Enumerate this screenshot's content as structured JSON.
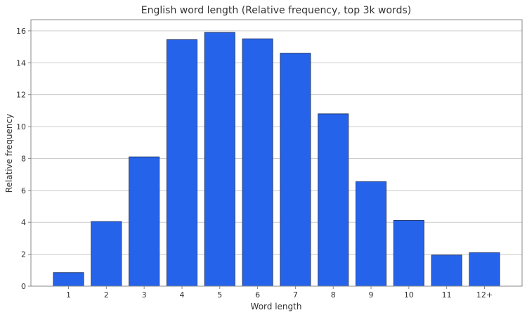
{
  "chart_data": {
    "type": "bar",
    "title": "English word length (Relative frequency, top 3k words)",
    "xlabel": "Word length",
    "ylabel": "Relative frequency",
    "categories": [
      "1",
      "2",
      "3",
      "4",
      "5",
      "6",
      "7",
      "8",
      "9",
      "10",
      "11",
      "12+"
    ],
    "values": [
      0.85,
      4.05,
      8.1,
      15.45,
      15.9,
      15.5,
      14.6,
      10.8,
      6.55,
      4.12,
      1.95,
      2.1
    ],
    "ylim": [
      0,
      16.7
    ],
    "yticks": [
      0,
      2,
      4,
      6,
      8,
      10,
      12,
      14,
      16
    ],
    "grid": "y",
    "bar_color": "#2563eb",
    "bar_edge_color": "#2a3f73",
    "grid_color": "#cccccc",
    "axis_color": "#888888"
  }
}
